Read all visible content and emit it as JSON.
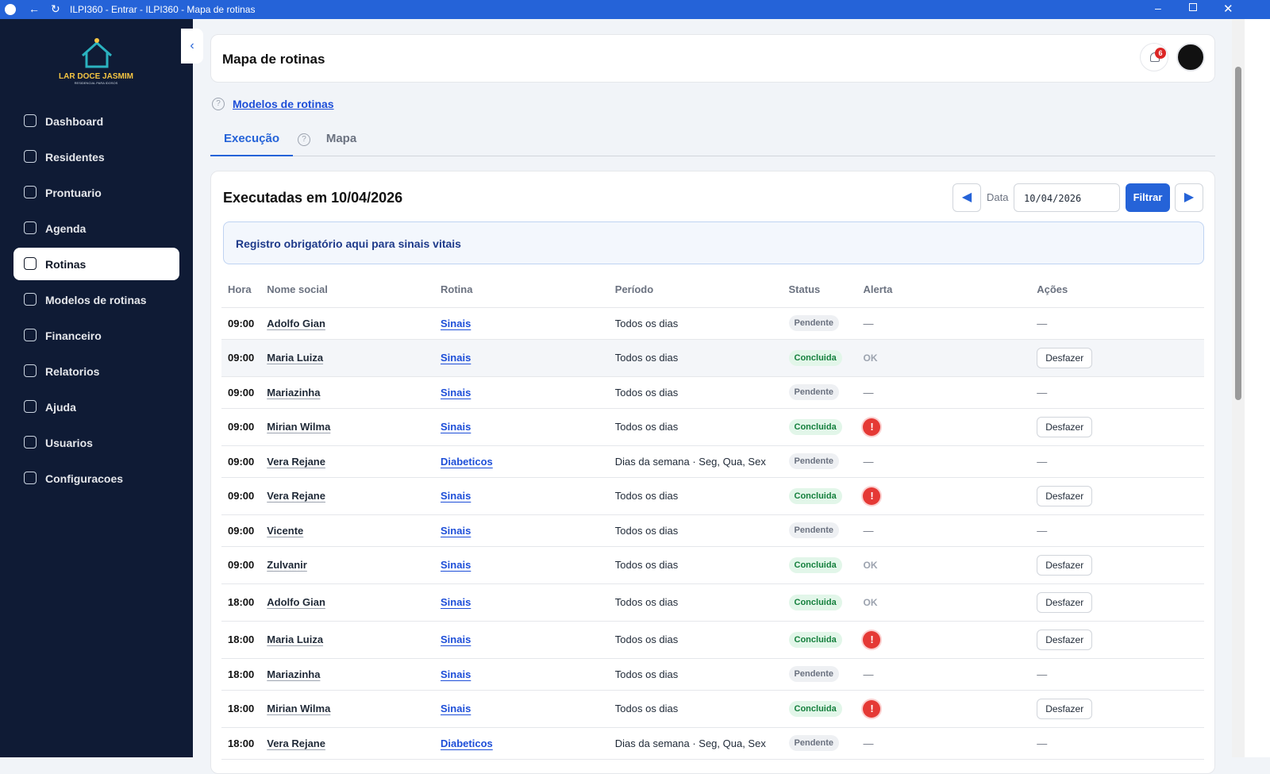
{
  "window": {
    "title": "ILPI360 - Entrar - ILPI360 - Mapa de rotinas"
  },
  "sidebar": {
    "logo": "LAR DOCE JASMIM",
    "logo_sub": "RESIDENCIAL PARA IDOSOS",
    "active": 4,
    "items": [
      "Dashboard",
      "Residentes",
      "Prontuario",
      "Agenda",
      "Rotinas",
      "Modelos de rotinas",
      "Financeiro",
      "Relatorios",
      "Ajuda",
      "Usuarios",
      "Configuracoes"
    ]
  },
  "header": {
    "title": "Mapa de rotinas",
    "notifications": 6
  },
  "link": "Modelos de rotinas",
  "tabs": {
    "items": [
      "Execução",
      "Mapa"
    ],
    "active": 0
  },
  "panel": {
    "title": "Executadas em 10/04/2026",
    "date_label": "Data",
    "date_value": "10/04/2026",
    "filter": "Filtrar",
    "notice": "Registro obrigatório aqui para sinais vitais"
  },
  "table": {
    "columns": [
      "Hora",
      "Nome social",
      "Rotina",
      "Período",
      "Status",
      "Alerta",
      "Ações"
    ],
    "rows": [
      [
        "09:00",
        "Adolfo Gian",
        "Sinais",
        "Todos os dias",
        "Pendente",
        "—",
        "—"
      ],
      [
        "09:00",
        "Maria Luiza",
        "Sinais",
        "Todos os dias",
        "Concluida",
        "OK",
        "Desfazer"
      ],
      [
        "09:00",
        "Mariazinha",
        "Sinais",
        "Todos os dias",
        "Pendente",
        "—",
        "—"
      ],
      [
        "09:00",
        "Mirian Wilma",
        "Sinais",
        "Todos os dias",
        "Concluida",
        "!",
        "Desfazer"
      ],
      [
        "09:00",
        "Vera Rejane",
        "Diabeticos",
        "Dias da semana · Seg, Qua, Sex",
        "Pendente",
        "—",
        "—"
      ],
      [
        "09:00",
        "Vera Rejane",
        "Sinais",
        "Todos os dias",
        "Concluida",
        "!",
        "Desfazer"
      ],
      [
        "09:00",
        "Vicente",
        "Sinais",
        "Todos os dias",
        "Pendente",
        "—",
        "—"
      ],
      [
        "09:00",
        "Zulvanir",
        "Sinais",
        "Todos os dias",
        "Concluida",
        "OK",
        "Desfazer"
      ],
      [
        "18:00",
        "Adolfo Gian",
        "Sinais",
        "Todos os dias",
        "Concluida",
        "OK",
        "Desfazer"
      ],
      [
        "18:00",
        "Maria Luiza",
        "Sinais",
        "Todos os dias",
        "Concluida",
        "!",
        "Desfazer"
      ],
      [
        "18:00",
        "Mariazinha",
        "Sinais",
        "Todos os dias",
        "Pendente",
        "—",
        "—"
      ],
      [
        "18:00",
        "Mirian Wilma",
        "Sinais",
        "Todos os dias",
        "Concluida",
        "!",
        "Desfazer"
      ],
      [
        "18:00",
        "Vera Rejane",
        "Diabeticos",
        "Dias da semana · Seg, Qua, Sex",
        "Pendente",
        "—",
        "—"
      ]
    ]
  }
}
